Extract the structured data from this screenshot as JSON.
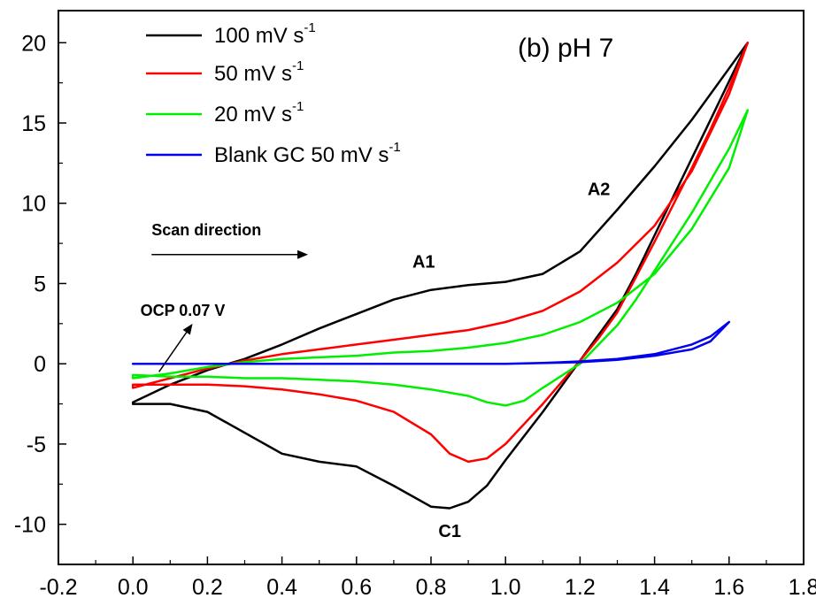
{
  "chart_data": {
    "type": "line",
    "title": "(b) pH 7",
    "xlabel": "",
    "ylabel": "",
    "xlim": [
      -0.2,
      1.8
    ],
    "ylim": [
      -12.5,
      22
    ],
    "x_ticks": [
      -0.2,
      0.0,
      0.2,
      0.4,
      0.6,
      0.8,
      1.0,
      1.2,
      1.4,
      1.6,
      1.8
    ],
    "x_tick_labels": [
      "-0.2",
      "0.0",
      "0.2",
      "0.4",
      "0.6",
      "0.8",
      "1.0",
      "1.2",
      "1.4",
      "1.6",
      "1.8"
    ],
    "y_ticks": [
      -10,
      -5,
      0,
      5,
      10,
      15,
      20
    ],
    "y_tick_labels": [
      "-10",
      "-5",
      "0",
      "5",
      "10",
      "15",
      "20"
    ],
    "grid": false,
    "legend_position": "top-left",
    "series": [
      {
        "name_main": "100 mV s",
        "name_sup": "-1",
        "color": "#000000",
        "points": [
          [
            0.0,
            -2.4
          ],
          [
            0.1,
            -1.3
          ],
          [
            0.2,
            -0.4
          ],
          [
            0.3,
            0.3
          ],
          [
            0.4,
            1.2
          ],
          [
            0.5,
            2.2
          ],
          [
            0.6,
            3.1
          ],
          [
            0.7,
            4.0
          ],
          [
            0.8,
            4.6
          ],
          [
            0.9,
            4.9
          ],
          [
            1.0,
            5.1
          ],
          [
            1.1,
            5.6
          ],
          [
            1.2,
            7.0
          ],
          [
            1.3,
            9.6
          ],
          [
            1.4,
            12.3
          ],
          [
            1.5,
            15.2
          ],
          [
            1.6,
            18.4
          ],
          [
            1.65,
            20.0
          ],
          [
            1.6,
            17.6
          ],
          [
            1.55,
            15.2
          ],
          [
            1.5,
            12.8
          ],
          [
            1.45,
            10.4
          ],
          [
            1.4,
            8.0
          ],
          [
            1.35,
            5.6
          ],
          [
            1.3,
            3.4
          ],
          [
            1.25,
            1.8
          ],
          [
            1.2,
            0.2
          ],
          [
            1.1,
            -3.0
          ],
          [
            1.0,
            -6.0
          ],
          [
            0.95,
            -7.6
          ],
          [
            0.9,
            -8.6
          ],
          [
            0.85,
            -9.0
          ],
          [
            0.8,
            -8.9
          ],
          [
            0.7,
            -7.6
          ],
          [
            0.6,
            -6.4
          ],
          [
            0.5,
            -6.1
          ],
          [
            0.4,
            -5.6
          ],
          [
            0.3,
            -4.3
          ],
          [
            0.2,
            -3.0
          ],
          [
            0.1,
            -2.5
          ],
          [
            0.0,
            -2.5
          ]
        ]
      },
      {
        "name_main": "50 mV s",
        "name_sup": "-1",
        "color": "#ff0000",
        "points": [
          [
            0.0,
            -1.5
          ],
          [
            0.1,
            -0.9
          ],
          [
            0.2,
            -0.3
          ],
          [
            0.3,
            0.2
          ],
          [
            0.4,
            0.6
          ],
          [
            0.5,
            0.9
          ],
          [
            0.6,
            1.2
          ],
          [
            0.7,
            1.5
          ],
          [
            0.8,
            1.8
          ],
          [
            0.9,
            2.1
          ],
          [
            1.0,
            2.6
          ],
          [
            1.1,
            3.3
          ],
          [
            1.2,
            4.5
          ],
          [
            1.3,
            6.3
          ],
          [
            1.4,
            8.6
          ],
          [
            1.5,
            12.0
          ],
          [
            1.6,
            16.8
          ],
          [
            1.65,
            20.0
          ],
          [
            1.6,
            17.2
          ],
          [
            1.55,
            14.6
          ],
          [
            1.5,
            12.2
          ],
          [
            1.45,
            9.9
          ],
          [
            1.4,
            7.6
          ],
          [
            1.35,
            5.4
          ],
          [
            1.3,
            3.2
          ],
          [
            1.25,
            1.6
          ],
          [
            1.2,
            0.2
          ],
          [
            1.1,
            -2.5
          ],
          [
            1.0,
            -5.0
          ],
          [
            0.95,
            -5.9
          ],
          [
            0.9,
            -6.1
          ],
          [
            0.85,
            -5.6
          ],
          [
            0.8,
            -4.4
          ],
          [
            0.7,
            -3.0
          ],
          [
            0.6,
            -2.3
          ],
          [
            0.5,
            -1.9
          ],
          [
            0.4,
            -1.6
          ],
          [
            0.3,
            -1.4
          ],
          [
            0.2,
            -1.3
          ],
          [
            0.1,
            -1.3
          ],
          [
            0.0,
            -1.3
          ]
        ]
      },
      {
        "name_main": "20 mV s",
        "name_sup": "-1",
        "color": "#00ee00",
        "points": [
          [
            0.0,
            -0.9
          ],
          [
            0.1,
            -0.6
          ],
          [
            0.2,
            -0.2
          ],
          [
            0.3,
            0.1
          ],
          [
            0.4,
            0.3
          ],
          [
            0.5,
            0.4
          ],
          [
            0.6,
            0.5
          ],
          [
            0.7,
            0.7
          ],
          [
            0.8,
            0.8
          ],
          [
            0.9,
            1.0
          ],
          [
            1.0,
            1.3
          ],
          [
            1.1,
            1.8
          ],
          [
            1.2,
            2.6
          ],
          [
            1.3,
            3.8
          ],
          [
            1.4,
            5.6
          ],
          [
            1.5,
            8.4
          ],
          [
            1.6,
            12.2
          ],
          [
            1.65,
            15.8
          ],
          [
            1.6,
            13.4
          ],
          [
            1.55,
            11.4
          ],
          [
            1.5,
            9.4
          ],
          [
            1.45,
            7.6
          ],
          [
            1.4,
            5.8
          ],
          [
            1.35,
            4.0
          ],
          [
            1.3,
            2.4
          ],
          [
            1.25,
            1.2
          ],
          [
            1.2,
            0.0
          ],
          [
            1.1,
            -1.5
          ],
          [
            1.05,
            -2.3
          ],
          [
            1.0,
            -2.6
          ],
          [
            0.95,
            -2.4
          ],
          [
            0.9,
            -2.0
          ],
          [
            0.8,
            -1.6
          ],
          [
            0.7,
            -1.3
          ],
          [
            0.6,
            -1.1
          ],
          [
            0.5,
            -1.0
          ],
          [
            0.4,
            -0.9
          ],
          [
            0.3,
            -0.9
          ],
          [
            0.2,
            -0.8
          ],
          [
            0.1,
            -0.8
          ],
          [
            0.0,
            -0.7
          ]
        ]
      },
      {
        "name_main": "Blank GC 50 mV s",
        "name_sup": "-1",
        "color": "#0000ee",
        "points": [
          [
            0.0,
            0.0
          ],
          [
            0.2,
            0.0
          ],
          [
            0.4,
            0.0
          ],
          [
            0.6,
            0.0
          ],
          [
            0.8,
            0.0
          ],
          [
            1.0,
            0.0
          ],
          [
            1.1,
            0.05
          ],
          [
            1.2,
            0.15
          ],
          [
            1.3,
            0.3
          ],
          [
            1.4,
            0.6
          ],
          [
            1.5,
            1.2
          ],
          [
            1.55,
            1.7
          ],
          [
            1.6,
            2.6
          ],
          [
            1.55,
            1.4
          ],
          [
            1.5,
            0.9
          ],
          [
            1.4,
            0.5
          ],
          [
            1.3,
            0.25
          ],
          [
            1.2,
            0.1
          ],
          [
            1.0,
            0.0
          ],
          [
            0.8,
            0.0
          ],
          [
            0.6,
            0.0
          ],
          [
            0.4,
            0.0
          ],
          [
            0.2,
            0.0
          ],
          [
            0.0,
            0.0
          ]
        ]
      }
    ],
    "annotations": [
      {
        "id": "a1",
        "text": "A1",
        "x": 0.75,
        "y": 6.0
      },
      {
        "id": "a2",
        "text": "A2",
        "x": 1.22,
        "y": 10.5
      },
      {
        "id": "c1",
        "text": "C1",
        "x": 0.82,
        "y": -10.8
      },
      {
        "id": "scan",
        "text": "Scan direction",
        "x": 0.05,
        "y": 8.0
      },
      {
        "id": "ocp",
        "text": "OCP 0.07 V",
        "x": 0.02,
        "y": 3.0
      }
    ],
    "scan_arrow": {
      "x_start": 0.05,
      "x_end": 0.47,
      "y": 6.8
    },
    "ocp_arrow": {
      "x_start": 0.07,
      "y_start": -0.5,
      "x_end": 0.16,
      "y_end": 2.5
    }
  }
}
